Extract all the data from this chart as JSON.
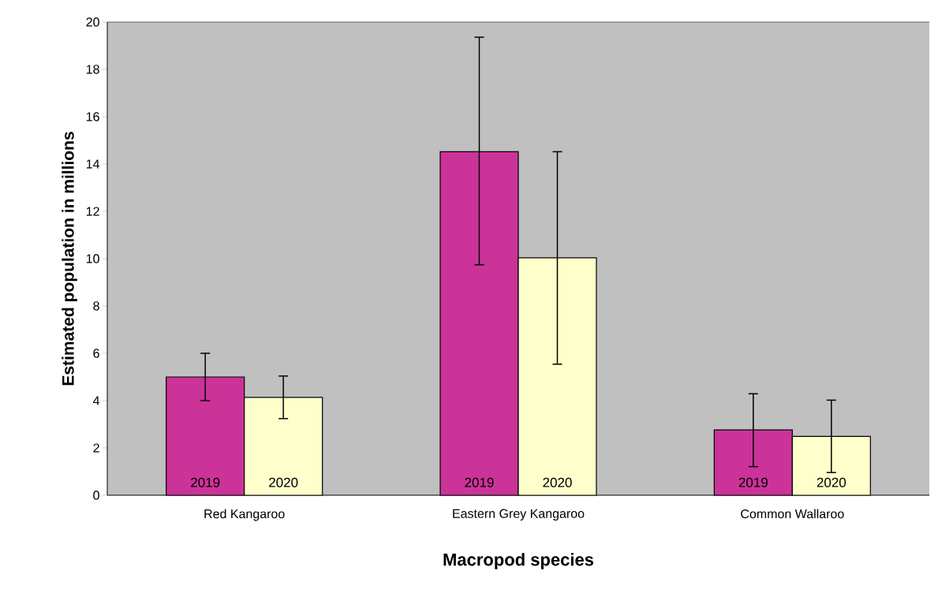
{
  "chart_data": {
    "type": "bar",
    "xlabel": "Macropod species",
    "ylabel": "Estimated population in millions",
    "categories": [
      "Red Kangaroo",
      "Eastern Grey Kangaroo",
      "Common Wallaroo"
    ],
    "series": [
      {
        "name": "2019",
        "color": "#cc3399",
        "values": [
          5.0,
          14.52,
          2.76
        ],
        "errors": [
          [
            4.0,
            6.0
          ],
          [
            9.74,
            19.36
          ],
          [
            1.21,
            4.29
          ]
        ]
      },
      {
        "name": "2020",
        "color": "#ffffcc",
        "values": [
          4.14,
          10.04,
          2.49
        ],
        "errors": [
          [
            3.24,
            5.04
          ],
          [
            5.54,
            14.52
          ],
          [
            0.96,
            4.02
          ]
        ]
      }
    ],
    "ylim": [
      0,
      20
    ],
    "yticks": [
      0,
      2,
      4,
      6,
      8,
      10,
      12,
      14,
      16,
      18,
      20
    ],
    "grid": false
  }
}
